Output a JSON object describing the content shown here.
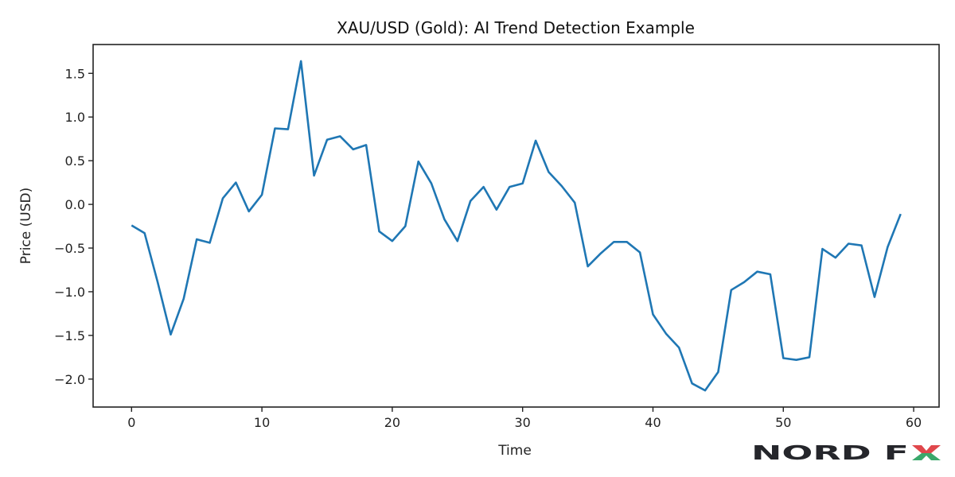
{
  "chart_data": {
    "type": "line",
    "title": "XAU/USD (Gold): AI Trend Detection Example",
    "xlabel": "Time",
    "ylabel": "Price (USD)",
    "xlim": [
      -2.95,
      61.95
    ],
    "ylim": [
      -2.32,
      1.83
    ],
    "xticks": [
      0,
      10,
      20,
      30,
      40,
      50,
      60
    ],
    "yticks": [
      1.5,
      1.0,
      0.5,
      0.0,
      -0.5,
      -1.0,
      -1.5,
      -2.0
    ],
    "ytick_labels": [
      "1.5",
      "1.0",
      "0.5",
      "0.0",
      "−0.5",
      "−1.0",
      "−1.5",
      "−2.0"
    ],
    "grid": false,
    "line_color": "#1f77b4",
    "series": [
      {
        "x": [
          0,
          1,
          2,
          3,
          4,
          5,
          6,
          7,
          8,
          9,
          10,
          11,
          12,
          13,
          14,
          15,
          16,
          17,
          18,
          19,
          20,
          21,
          22,
          23,
          24,
          25,
          26,
          27,
          28,
          29,
          30,
          31,
          32,
          33,
          34,
          35,
          36,
          37,
          38,
          39,
          40,
          41,
          42,
          43,
          44,
          45,
          46,
          47,
          48,
          49,
          50,
          51,
          52,
          53,
          54,
          55,
          56,
          57,
          58,
          59
        ],
        "values": [
          -0.24,
          -0.33,
          -0.89,
          -1.49,
          -1.08,
          -0.4,
          -0.44,
          0.07,
          0.25,
          -0.08,
          0.11,
          0.87,
          0.86,
          1.64,
          0.33,
          0.74,
          0.78,
          0.63,
          0.68,
          -0.31,
          -0.42,
          -0.25,
          0.49,
          0.24,
          -0.17,
          -0.42,
          0.04,
          0.2,
          -0.06,
          0.2,
          0.24,
          0.73,
          0.37,
          0.21,
          0.02,
          -0.71,
          -0.56,
          -0.43,
          -0.43,
          -0.55,
          -1.26,
          -1.48,
          -1.64,
          -2.05,
          -2.13,
          -1.92,
          -0.98,
          -0.89,
          -0.77,
          -0.8,
          -1.76,
          -1.78,
          -1.75,
          -0.51,
          -0.61,
          -0.45,
          -0.47,
          -1.06,
          -0.49,
          -0.11
        ]
      }
    ]
  },
  "logo": {
    "text": "NORD FX",
    "text_color": "#25262b",
    "x_top_color": "#e0474c",
    "x_bottom_color": "#3aa86b"
  }
}
